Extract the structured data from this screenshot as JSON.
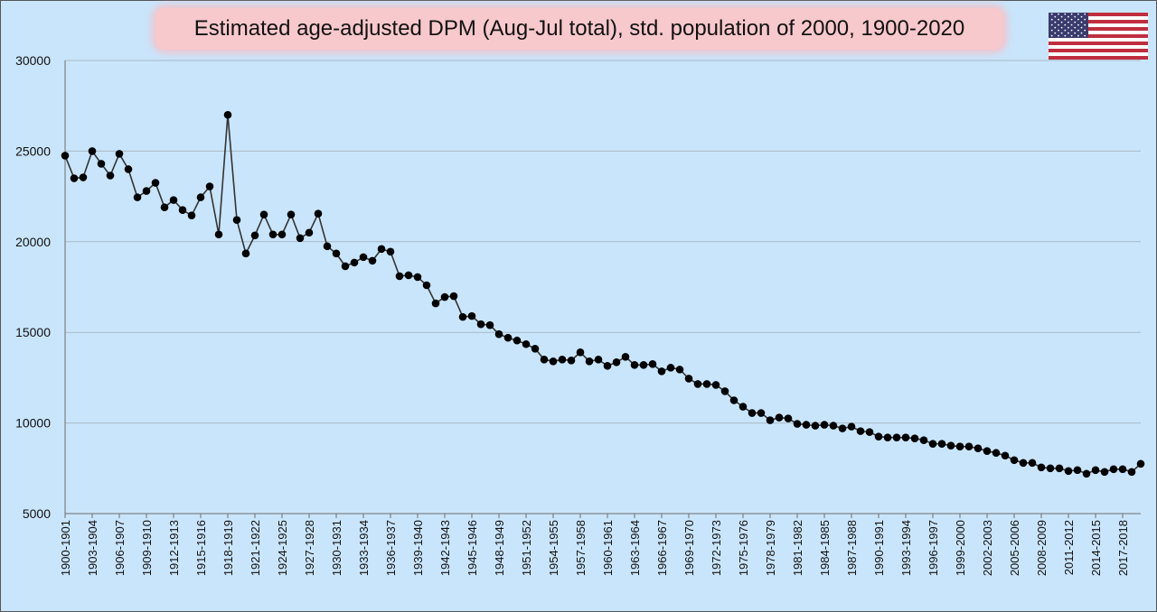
{
  "chart_data": {
    "type": "line",
    "title": "Estimated age-adjusted DPM (Aug-Jul total), std. population of 2000, 1900-2020",
    "xlabel": "",
    "ylabel": "",
    "ylim": [
      5000,
      30000
    ],
    "yticks": [
      5000,
      10000,
      15000,
      20000,
      25000,
      30000
    ],
    "grid": true,
    "legend": "none",
    "line_color": "#333333",
    "marker_color": "#000000",
    "flag_icon": "us-flag-icon",
    "categories": [
      "1900-1901",
      "1901-1902",
      "1902-1903",
      "1903-1904",
      "1904-1905",
      "1905-1906",
      "1906-1907",
      "1907-1908",
      "1908-1909",
      "1909-1910",
      "1910-1911",
      "1911-1912",
      "1912-1913",
      "1913-1914",
      "1914-1915",
      "1915-1916",
      "1916-1917",
      "1917-1918",
      "1918-1919",
      "1919-1920",
      "1920-1921",
      "1921-1922",
      "1922-1923",
      "1923-1924",
      "1924-1925",
      "1925-1926",
      "1926-1927",
      "1927-1928",
      "1928-1929",
      "1929-1930",
      "1930-1931",
      "1931-1932",
      "1932-1933",
      "1933-1934",
      "1934-1935",
      "1935-1936",
      "1936-1937",
      "1937-1938",
      "1938-1939",
      "1939-1940",
      "1940-1941",
      "1941-1942",
      "1942-1943",
      "1943-1944",
      "1944-1945",
      "1945-1946",
      "1946-1947",
      "1947-1948",
      "1948-1949",
      "1949-1950",
      "1950-1951",
      "1951-1952",
      "1952-1953",
      "1953-1954",
      "1954-1955",
      "1955-1956",
      "1956-1957",
      "1957-1958",
      "1958-1959",
      "1959-1960",
      "1960-1961",
      "1961-1962",
      "1962-1963",
      "1963-1964",
      "1964-1965",
      "1965-1966",
      "1966-1967",
      "1967-1968",
      "1968-1969",
      "1969-1970",
      "1970-1971",
      "1971-1972",
      "1972-1973",
      "1973-1974",
      "1974-1975",
      "1975-1976",
      "1976-1977",
      "1977-1978",
      "1978-1979",
      "1979-1980",
      "1980-1981",
      "1981-1982",
      "1982-1983",
      "1983-1984",
      "1984-1985",
      "1985-1986",
      "1986-1987",
      "1987-1988",
      "1988-1989",
      "1989-1990",
      "1990-1991",
      "1991-1992",
      "1992-1993",
      "1993-1994",
      "1994-1995",
      "1995-1996",
      "1996-1997",
      "1997-1998",
      "1998-1999",
      "1999-2000",
      "2000-2001",
      "2001-2002",
      "2002-2003",
      "2003-2004",
      "2004-2005",
      "2005-2006",
      "2006-2007",
      "2007-2008",
      "2008-2009",
      "2009-2010",
      "2010-2011",
      "2011-2012",
      "2012-2013",
      "2013-2014",
      "2014-2015",
      "2015-2016",
      "2016-2017",
      "2017-2018",
      "2018-2019",
      "2019-2020"
    ],
    "labeled_categories": [
      "1900-1901",
      "1903-1904",
      "1906-1907",
      "1909-1910",
      "1912-1913",
      "1915-1916",
      "1918-1919",
      "1921-1922",
      "1924-1925",
      "1927-1928",
      "1930-1931",
      "1933-1934",
      "1936-1937",
      "1939-1940",
      "1942-1943",
      "1945-1946",
      "1948-1949",
      "1951-1952",
      "1954-1955",
      "1957-1958",
      "1960-1961",
      "1963-1964",
      "1966-1967",
      "1969-1970",
      "1972-1973",
      "1975-1976",
      "1978-1979",
      "1981-1982",
      "1984-1985",
      "1987-1988",
      "1990-1991",
      "1993-1994",
      "1996-1997",
      "1999-2000",
      "2002-2003",
      "2005-2006",
      "2008-2009",
      "2011-2012",
      "2014-2015",
      "2017-2018"
    ],
    "series": [
      {
        "values": [
          24750,
          23500,
          23550,
          25000,
          24300,
          23650,
          24850,
          24000,
          22450,
          22800,
          23250,
          21900,
          22300,
          21750,
          21450,
          22450,
          23050,
          20400,
          27000,
          21200,
          19350,
          20350,
          21500,
          20400,
          20400,
          21500,
          20200,
          20500,
          21550,
          19750,
          19350,
          18650,
          18850,
          19150,
          18950,
          19600,
          19450,
          18100,
          18150,
          18050,
          17600,
          16600,
          16950,
          17000,
          15850,
          15900,
          15450,
          15400,
          14900,
          14700,
          14550,
          14350,
          14100,
          13500,
          13400,
          13500,
          13450,
          13900,
          13400,
          13500,
          13150,
          13350,
          13650,
          13200,
          13200,
          13250,
          12850,
          13050,
          12950,
          12450,
          12150,
          12150,
          12100,
          11750,
          11250,
          10900,
          10550,
          10550,
          10150,
          10300,
          10250,
          9950,
          9900,
          9850,
          9900,
          9850,
          9700,
          9800,
          9550,
          9500,
          9250,
          9200,
          9200,
          9200,
          9150,
          9050,
          8850,
          8850,
          8750,
          8700,
          8700,
          8600,
          8450,
          8350,
          8200,
          7950,
          7800,
          7800,
          7550,
          7500,
          7500,
          7350,
          7400,
          7200,
          7400,
          7300,
          7450,
          7450,
          7300,
          7750
        ]
      }
    ]
  }
}
